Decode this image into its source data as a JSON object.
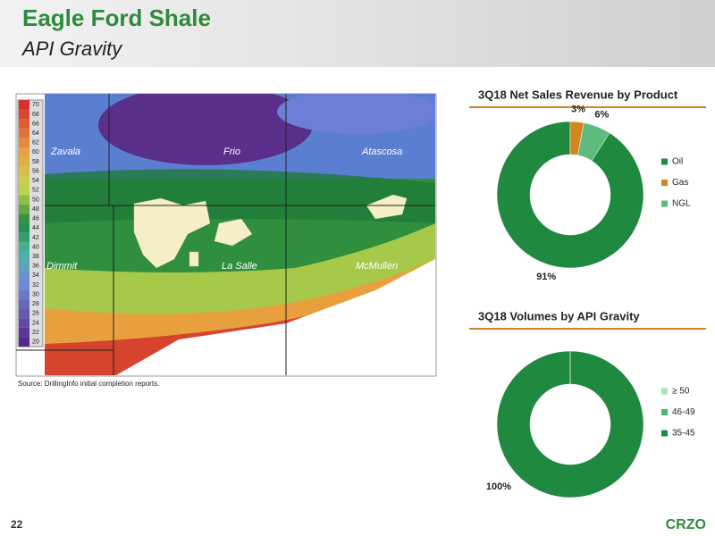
{
  "header": {
    "title": "Eagle Ford Shale",
    "subtitle": "API Gravity"
  },
  "map": {
    "scale_ticks": [
      20,
      22,
      24,
      26,
      28,
      30,
      32,
      34,
      36,
      38,
      40,
      42,
      44,
      46,
      48,
      50,
      52,
      54,
      56,
      58,
      60,
      62,
      64,
      66,
      68,
      70
    ],
    "counties": [
      "Zavala",
      "Frio",
      "Atascosa",
      "Dimmit",
      "La Salle",
      "McMullen"
    ],
    "source": "Source: DrillingInfo initial completion reports."
  },
  "chart_data": [
    {
      "type": "donut",
      "title": "3Q18 Net Sales Revenue by Product",
      "categories": [
        "Oil",
        "Gas",
        "NGL"
      ],
      "values": [
        91,
        3,
        6
      ],
      "value_labels": [
        "91%",
        "3%",
        "6%"
      ],
      "colors": [
        "#1f8a3f",
        "#d1861f",
        "#5dbb7e"
      ],
      "legend": "right"
    },
    {
      "type": "donut",
      "title": "3Q18 Volumes by API Gravity",
      "categories": [
        "≥ 50",
        "46-49",
        "35-45"
      ],
      "values": [
        0,
        0,
        100
      ],
      "value_labels": [
        null,
        null,
        "100%"
      ],
      "colors": [
        "#a9e2b3",
        "#4cb86a",
        "#1f8a3f"
      ],
      "legend": "right"
    }
  ],
  "footer": {
    "page": "22",
    "logo": "CRZO"
  }
}
